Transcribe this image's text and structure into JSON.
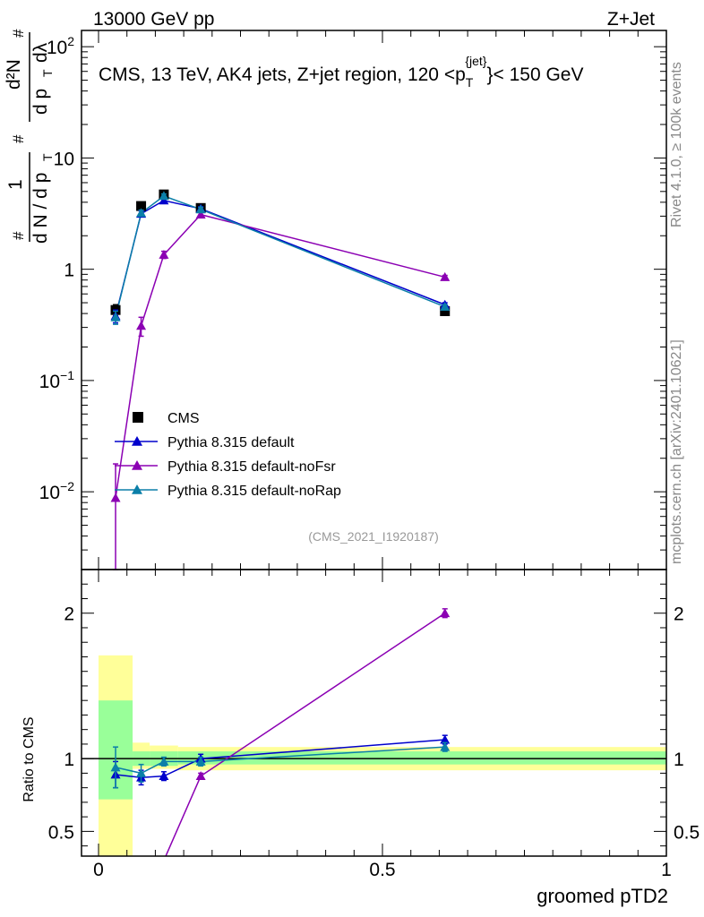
{
  "header": {
    "left": "13000 GeV pp",
    "right": "Z+Jet"
  },
  "side_labels": {
    "rivet": "Rivet 4.1.0, ≥ 100k events",
    "mcplots": "mcplots.cern.ch [arXiv:2401.10621]"
  },
  "chart_data": [
    {
      "type": "line",
      "panel": "main",
      "title": "CMS, 13 TeV, AK4 jets, Z+jet region, 120 <p_T^{jet}< 150 GeV",
      "title_parts": {
        "main": "CMS, 13 TeV, AK4 jets, Z+jet region, 120 <p",
        "sup": "{jet}",
        "sub": "T",
        "tail": "}< 150 GeV"
      },
      "ylabel": "1/(dN/dp_T) d²N/(dp_T dλ)",
      "ylabel_parts": {
        "a": "#",
        "b": "1",
        "c": "d N / d p",
        "d": "T",
        "e": "#",
        "f": "d²N",
        "g": "d p",
        "h": "T",
        "i": "dλ",
        "j": "#"
      },
      "yscale": "log",
      "ylim": [
        0.002,
        140
      ],
      "xlim": [
        -0.03,
        1.0
      ],
      "yticks": [
        {
          "value": 0.01,
          "base": "10",
          "exp": "−2"
        },
        {
          "value": 0.1,
          "base": "10",
          "exp": "−1"
        },
        {
          "value": 1,
          "base": "1",
          "exp": ""
        },
        {
          "value": 10,
          "base": "10",
          "exp": ""
        },
        {
          "value": 100,
          "base": "10",
          "exp": "2"
        }
      ],
      "watermark": "(CMS_2021_I1920187)",
      "series": [
        {
          "name": "CMS",
          "color": "#000000",
          "marker": "square",
          "line": false,
          "x": [
            0.03,
            0.075,
            0.115,
            0.18,
            0.61
          ],
          "y": [
            0.43,
            3.7,
            4.7,
            3.55,
            0.42
          ],
          "yerr": [
            0.05,
            0.2,
            0.2,
            0.15,
            0.02
          ]
        },
        {
          "name": "Pythia 8.315 default",
          "color": "#0000cc",
          "marker": "triangle",
          "line": true,
          "x": [
            0.03,
            0.075,
            0.115,
            0.18,
            0.61
          ],
          "y": [
            0.38,
            3.15,
            4.15,
            3.5,
            0.48
          ],
          "yerr": [
            0.05,
            0.2,
            0.2,
            0.15,
            0.02
          ]
        },
        {
          "name": "Pythia 8.315 default-noFsr",
          "color": "#8b00b3",
          "marker": "triangle",
          "line": true,
          "x": [
            0.03,
            0.075,
            0.115,
            0.18,
            0.61
          ],
          "y": [
            0.0088,
            0.31,
            1.35,
            3.1,
            0.85
          ],
          "yerr_low": [
            0.0088,
            0.06,
            0.1,
            0.15,
            0.03
          ],
          "yerr_high": [
            0.009,
            0.06,
            0.1,
            0.15,
            0.03
          ]
        },
        {
          "name": "Pythia 8.315 default-noRap",
          "color": "#0b7fa8",
          "marker": "triangle",
          "line": true,
          "x": [
            0.03,
            0.075,
            0.115,
            0.18,
            0.61
          ],
          "y": [
            0.37,
            3.2,
            4.55,
            3.45,
            0.46
          ],
          "yerr": [
            0.05,
            0.2,
            0.2,
            0.15,
            0.02
          ]
        }
      ]
    },
    {
      "type": "line",
      "panel": "ratio",
      "xlabel": "groomed pTD2",
      "ylabel": "Ratio to CMS",
      "xlim": [
        -0.03,
        1.0
      ],
      "ylim": [
        0.33,
        2.3
      ],
      "xticks": [
        {
          "value": 0,
          "label": "0"
        },
        {
          "value": 0.5,
          "label": "0.5"
        },
        {
          "value": 1,
          "label": "1"
        }
      ],
      "yticks": [
        {
          "value": 0.5,
          "label": "0.5"
        },
        {
          "value": 1,
          "label": "1"
        },
        {
          "value": 2,
          "label": "2"
        }
      ],
      "bands": [
        {
          "x0": 0.0,
          "x1": 0.06,
          "green": [
            0.72,
            1.4
          ],
          "yellow": [
            0.33,
            1.71
          ]
        },
        {
          "x0": 0.06,
          "x1": 0.09,
          "green": [
            0.95,
            1.05
          ],
          "yellow": [
            0.93,
            1.11
          ]
        },
        {
          "x0": 0.09,
          "x1": 0.14,
          "green": [
            0.95,
            1.05
          ],
          "yellow": [
            0.93,
            1.09
          ]
        },
        {
          "x0": 0.14,
          "x1": 1.0,
          "green": [
            0.96,
            1.05
          ],
          "yellow": [
            0.92,
            1.08
          ]
        }
      ],
      "series": [
        {
          "name": "Pythia 8.315 default",
          "color": "#0000cc",
          "x": [
            0.03,
            0.075,
            0.115,
            0.18,
            0.61
          ],
          "y": [
            0.89,
            0.87,
            0.88,
            1.0,
            1.13
          ],
          "yerr": [
            0.09,
            0.05,
            0.03,
            0.03,
            0.03
          ]
        },
        {
          "name": "Pythia 8.315 default-noFsr",
          "color": "#8b00b3",
          "x": [
            0.115,
            0.18,
            0.61
          ],
          "y": [
            0.3,
            0.88,
            2.0
          ],
          "yerr": [
            0.0,
            0.02,
            0.03
          ]
        },
        {
          "name": "Pythia 8.315 default-noRap",
          "color": "#0b7fa8",
          "x": [
            0.03,
            0.075,
            0.115,
            0.18,
            0.61
          ],
          "y": [
            0.94,
            0.9,
            0.98,
            0.98,
            1.08
          ],
          "yerr": [
            0.14,
            0.06,
            0.03,
            0.03,
            0.03
          ]
        }
      ]
    }
  ]
}
